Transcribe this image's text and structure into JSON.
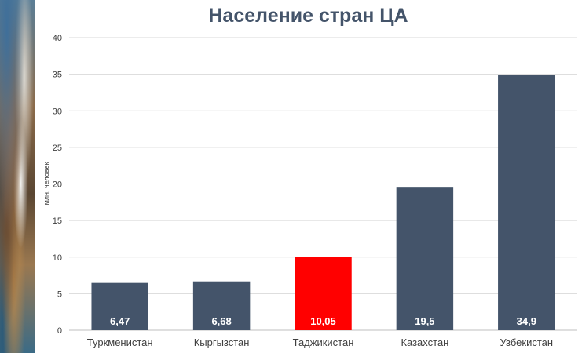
{
  "chart_data": {
    "type": "bar",
    "title": "Население стран ЦА",
    "ylabel": "млн. человек",
    "xlabel": "",
    "categories": [
      "Туркменистан",
      "Кыргызстан",
      "Таджикистан",
      "Казахстан",
      "Узбекистан"
    ],
    "values": [
      6.47,
      6.68,
      10.05,
      19.5,
      34.9
    ],
    "value_labels": [
      "6,47",
      "6,68",
      "10,05",
      "19,5",
      "34,9"
    ],
    "yticks": [
      "0",
      "5",
      "10",
      "15",
      "20",
      "25",
      "30",
      "35",
      "40"
    ],
    "ylim": [
      0,
      40
    ],
    "grid": true,
    "legend": "none",
    "colors": {
      "bar": "#44546a",
      "highlight": "#ff0000",
      "highlight_index": 2,
      "grid": "#d9d9d9",
      "axis_text": "#404040",
      "title": "#44546a",
      "value_label": "#ffffff"
    }
  }
}
